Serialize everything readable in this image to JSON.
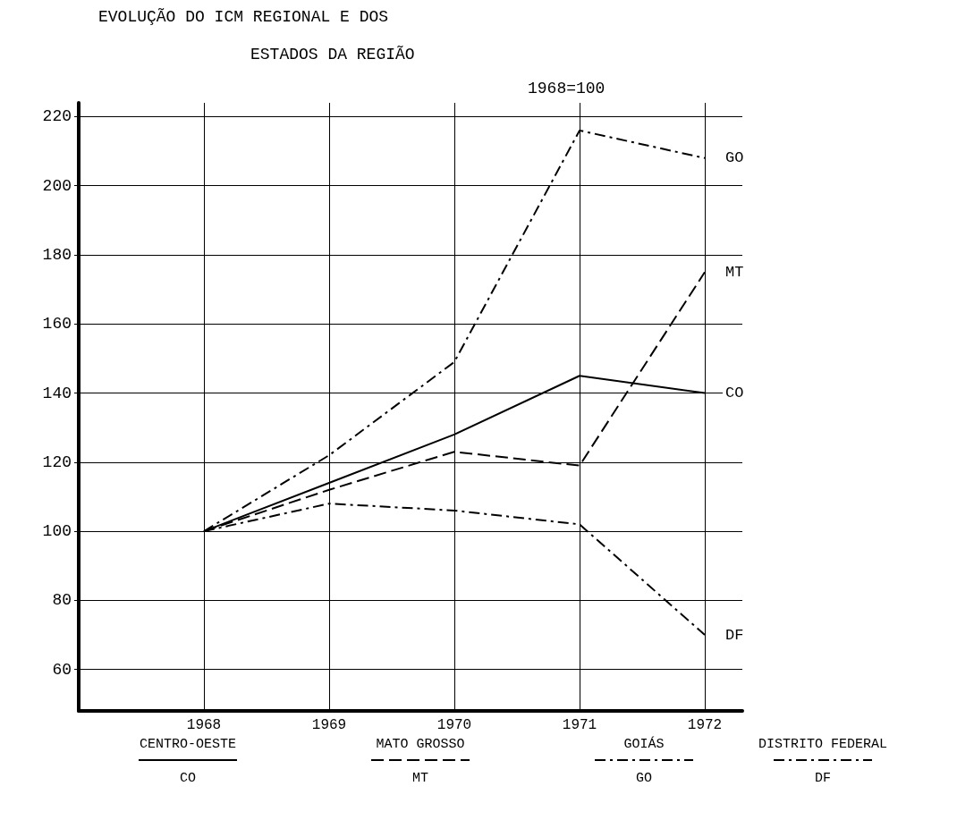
{
  "chart_data": {
    "type": "line",
    "title": "EVOLUÇÃO DO ICM REGIONAL E DOS\nESTADOS DA REGIÃO",
    "subtitle": "1968=100",
    "x": [
      1968,
      1969,
      1970,
      1971,
      1972
    ],
    "xlim": [
      1967,
      1972.3
    ],
    "xticks": [
      1968,
      1969,
      1970,
      1971,
      1972
    ],
    "ylim": [
      48,
      224
    ],
    "yticks": [
      60,
      80,
      100,
      120,
      140,
      160,
      180,
      200,
      220
    ],
    "grid": true,
    "legend": "right",
    "marker": "none",
    "annotations": [
      "CENTRO-OESTE",
      "MATO GROSSO",
      "GOIÁS",
      "DISTRITO FEDERAL"
    ],
    "series": [
      {
        "name": "CO",
        "color": "#000000",
        "line_style": "solid",
        "values": [
          100,
          114,
          128,
          145,
          140
        ]
      },
      {
        "name": "MT",
        "color": "#000000",
        "line_style": "dashed",
        "values": [
          100,
          112,
          123,
          119,
          175
        ]
      },
      {
        "name": "GO",
        "color": "#000000",
        "line_style": "dotted",
        "values": [
          100,
          122,
          149,
          216,
          208
        ]
      },
      {
        "name": "DF",
        "color": "#000000",
        "line_style": "dotted",
        "values": [
          100,
          108,
          106,
          102,
          70
        ]
      }
    ]
  }
}
